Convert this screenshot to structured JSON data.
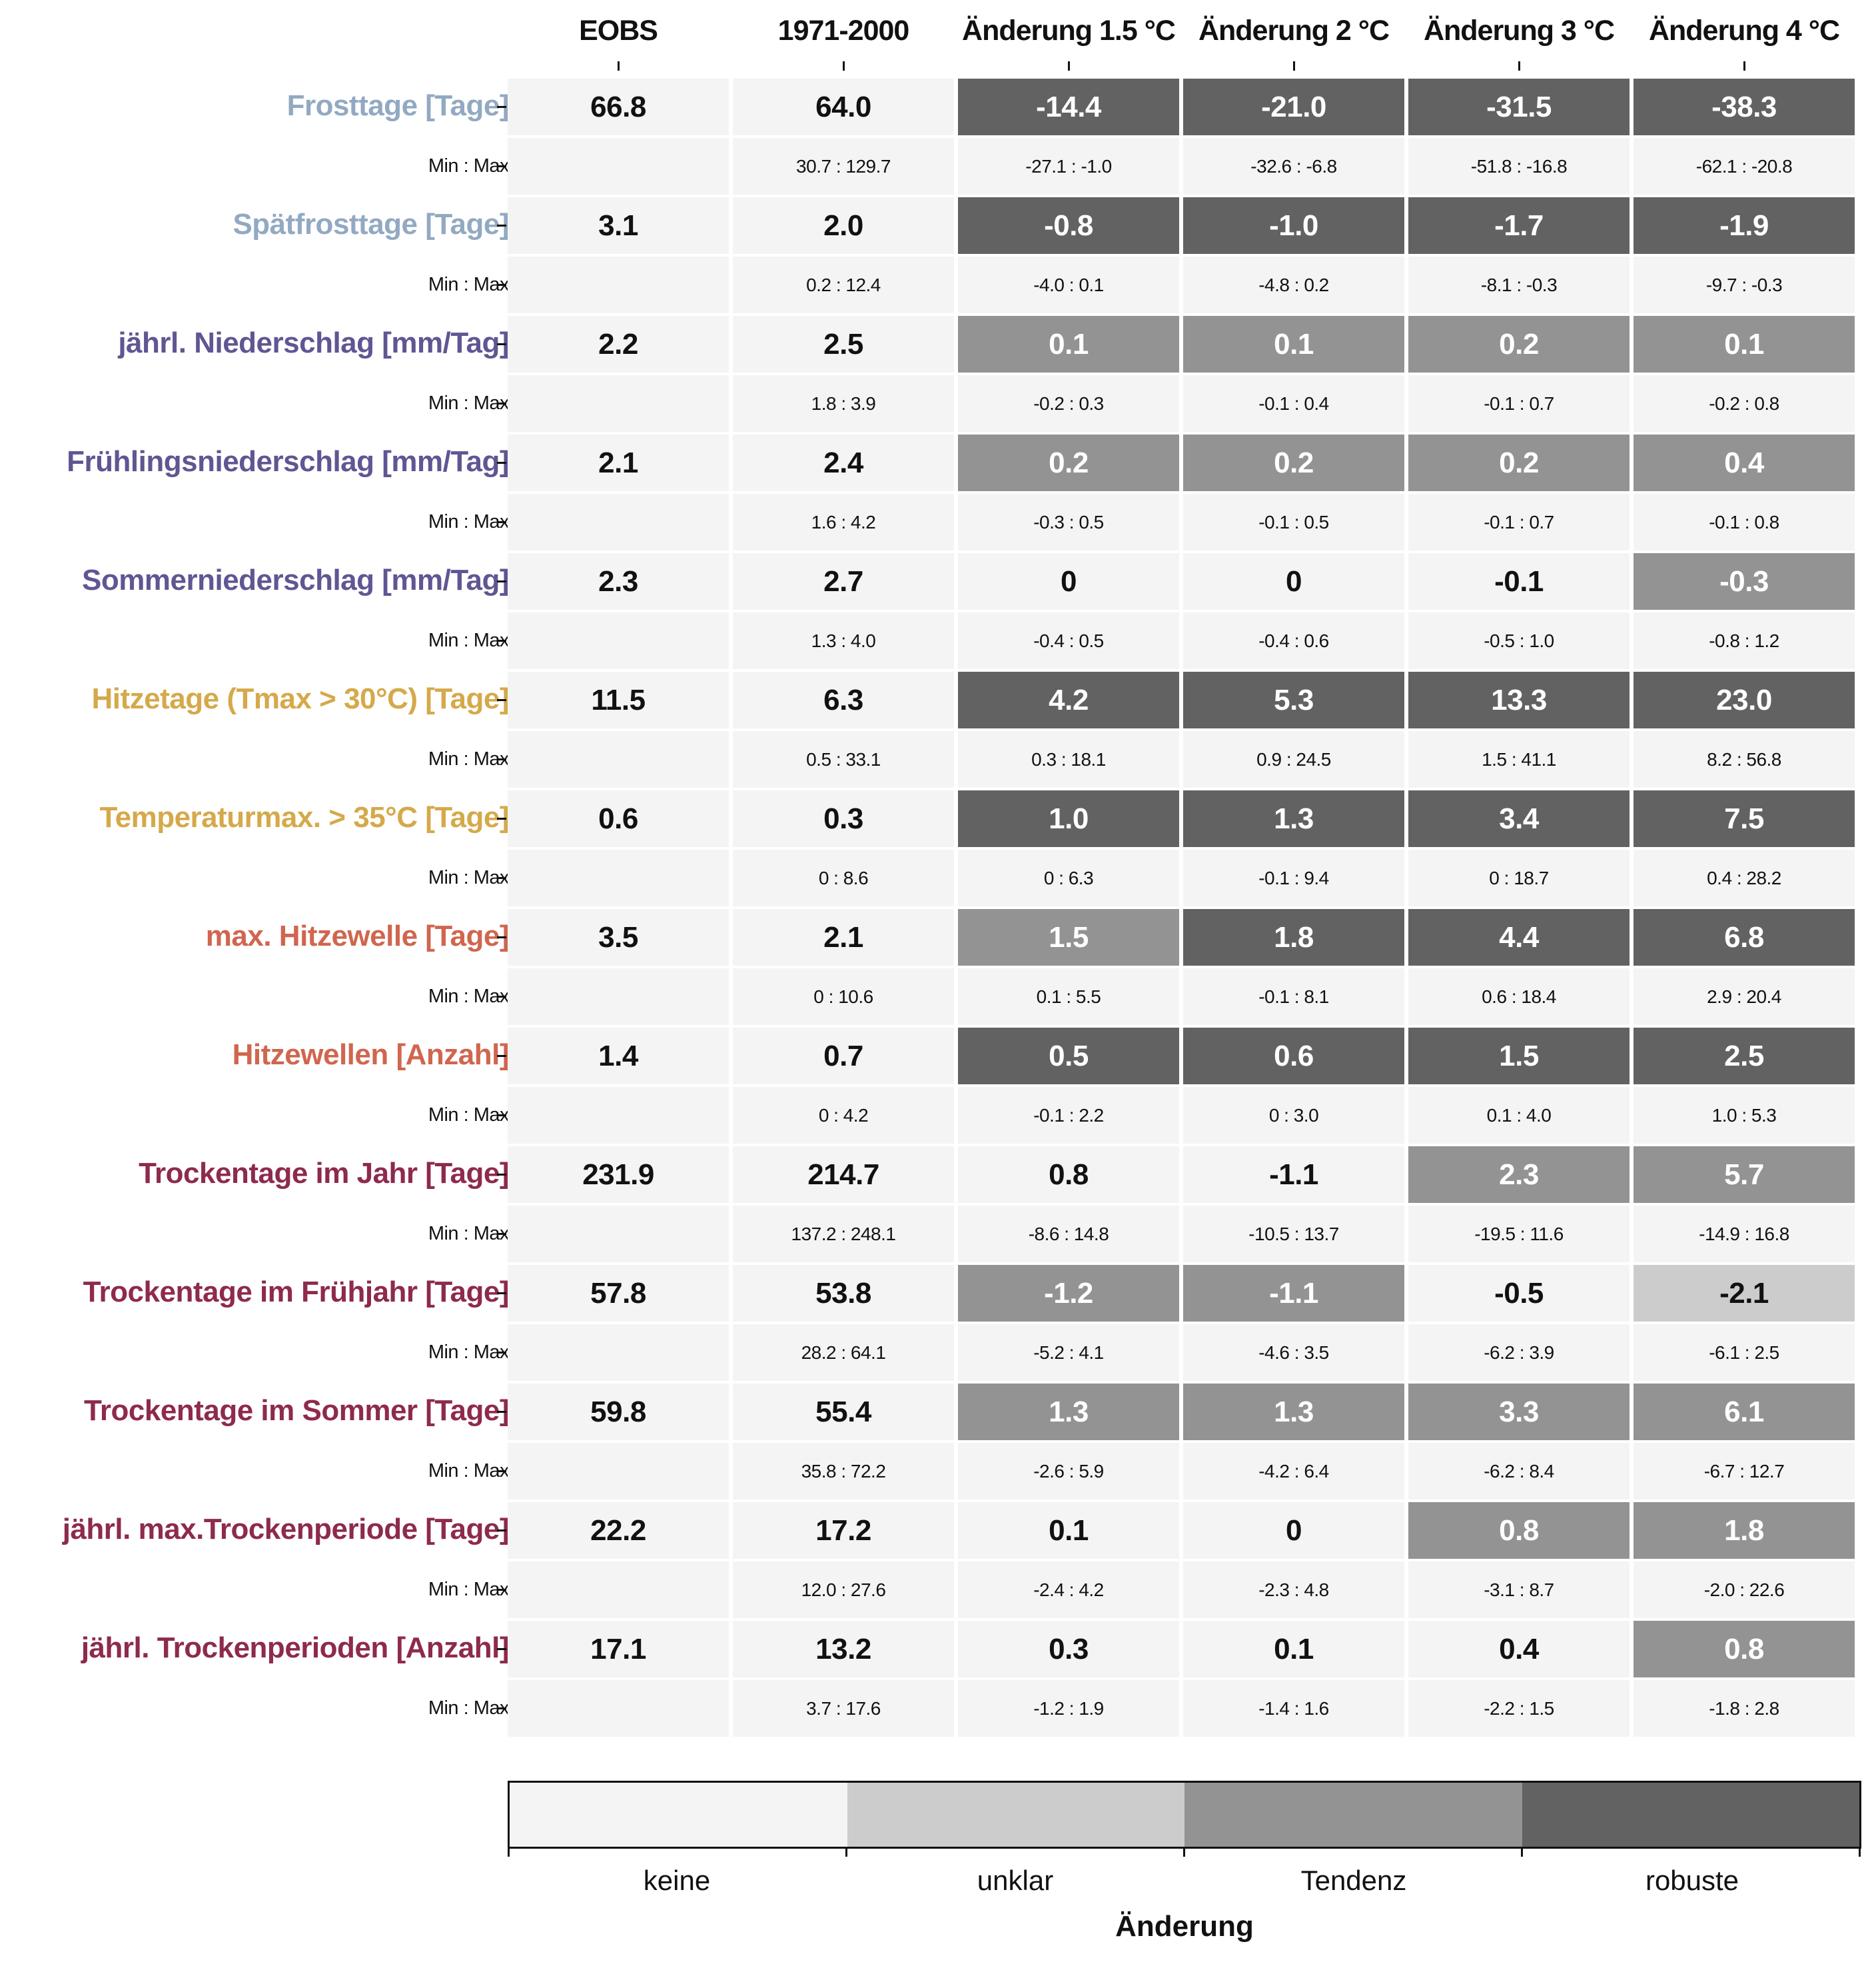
{
  "chart_data": {
    "type": "table",
    "columns": [
      "EOBS",
      "1971-2000",
      "Änderung 1.5 °C",
      "Änderung 2 °C",
      "Änderung 3 °C",
      "Änderung 4 °C"
    ],
    "sub_label": "Min : Max",
    "rows": [
      {
        "label": "Frosttage [Tage]",
        "color": "#92a9c2",
        "values": [
          "66.8",
          "64.0",
          "-14.4",
          "-21.0",
          "-31.5",
          "-38.3"
        ],
        "ranges": [
          "",
          "30.7 : 129.7",
          "-27.1 : -1.0",
          "-32.6 : -6.8",
          "-51.8 : -16.8",
          "-62.1 : -20.8"
        ],
        "change_class": [
          "robuste",
          "robuste",
          "robuste",
          "robuste"
        ]
      },
      {
        "label": "Spätfrosttage [Tage]",
        "color": "#92a9c2",
        "values": [
          "3.1",
          "2.0",
          "-0.8",
          "-1.0",
          "-1.7",
          "-1.9"
        ],
        "ranges": [
          "",
          "0.2 : 12.4",
          "-4.0 : 0.1",
          "-4.8 : 0.2",
          "-8.1 : -0.3",
          "-9.7 : -0.3"
        ],
        "change_class": [
          "robuste",
          "robuste",
          "robuste",
          "robuste"
        ]
      },
      {
        "label": "jährl. Niederschlag [mm/Tag]",
        "color": "#5f5693",
        "values": [
          "2.2",
          "2.5",
          "0.1",
          "0.1",
          "0.2",
          "0.1"
        ],
        "ranges": [
          "",
          "1.8 : 3.9",
          "-0.2 : 0.3",
          "-0.1 : 0.4",
          "-0.1 : 0.7",
          "-0.2 : 0.8"
        ],
        "change_class": [
          "Tendenz",
          "Tendenz",
          "Tendenz",
          "Tendenz"
        ]
      },
      {
        "label": "Frühlingsniederschlag [mm/Tag]",
        "color": "#5f5693",
        "values": [
          "2.1",
          "2.4",
          "0.2",
          "0.2",
          "0.2",
          "0.4"
        ],
        "ranges": [
          "",
          "1.6 : 4.2",
          "-0.3 : 0.5",
          "-0.1 : 0.5",
          "-0.1 : 0.7",
          "-0.1 : 0.8"
        ],
        "change_class": [
          "Tendenz",
          "Tendenz",
          "Tendenz",
          "Tendenz"
        ]
      },
      {
        "label": "Sommerniederschlag [mm/Tag]",
        "color": "#5f5693",
        "values": [
          "2.3",
          "2.7",
          "0",
          "0",
          "-0.1",
          "-0.3"
        ],
        "ranges": [
          "",
          "1.3 : 4.0",
          "-0.4 : 0.5",
          "-0.4 : 0.6",
          "-0.5 : 1.0",
          "-0.8 : 1.2"
        ],
        "change_class": [
          "keine",
          "keine",
          "keine",
          "Tendenz"
        ]
      },
      {
        "label": "Hitzetage (Tmax > 30°C) [Tage]",
        "color": "#d5a94a",
        "values": [
          "11.5",
          "6.3",
          "4.2",
          "5.3",
          "13.3",
          "23.0"
        ],
        "ranges": [
          "",
          "0.5 : 33.1",
          "0.3 : 18.1",
          "0.9 : 24.5",
          "1.5 : 41.1",
          "8.2 : 56.8"
        ],
        "change_class": [
          "robuste",
          "robuste",
          "robuste",
          "robuste"
        ]
      },
      {
        "label": "Temperaturmax. > 35°C [Tage]",
        "color": "#d5a94a",
        "values": [
          "0.6",
          "0.3",
          "1.0",
          "1.3",
          "3.4",
          "7.5"
        ],
        "ranges": [
          "",
          "0 : 8.6",
          "0 : 6.3",
          "-0.1 : 9.4",
          "0 : 18.7",
          "0.4 : 28.2"
        ],
        "change_class": [
          "robuste",
          "robuste",
          "robuste",
          "robuste"
        ]
      },
      {
        "label": "max. Hitzewelle [Tage]",
        "color": "#d0664f",
        "values": [
          "3.5",
          "2.1",
          "1.5",
          "1.8",
          "4.4",
          "6.8"
        ],
        "ranges": [
          "",
          "0 : 10.6",
          "0.1 : 5.5",
          "-0.1 : 8.1",
          "0.6 : 18.4",
          "2.9 : 20.4"
        ],
        "change_class": [
          "Tendenz",
          "robuste",
          "robuste",
          "robuste"
        ]
      },
      {
        "label": "Hitzewellen [Anzahl]",
        "color": "#d0664f",
        "values": [
          "1.4",
          "0.7",
          "0.5",
          "0.6",
          "1.5",
          "2.5"
        ],
        "ranges": [
          "",
          "0 : 4.2",
          "-0.1 : 2.2",
          "0 : 3.0",
          "0.1 : 4.0",
          "1.0 : 5.3"
        ],
        "change_class": [
          "robuste",
          "robuste",
          "robuste",
          "robuste"
        ]
      },
      {
        "label": "Trockentage im Jahr [Tage]",
        "color": "#8e2a4e",
        "values": [
          "231.9",
          "214.7",
          "0.8",
          "-1.1",
          "2.3",
          "5.7"
        ],
        "ranges": [
          "",
          "137.2 : 248.1",
          "-8.6 : 14.8",
          "-10.5 : 13.7",
          "-19.5 : 11.6",
          "-14.9 : 16.8"
        ],
        "change_class": [
          "keine",
          "keine",
          "Tendenz",
          "Tendenz"
        ]
      },
      {
        "label": "Trockentage im Frühjahr [Tage]",
        "color": "#8e2a4e",
        "values": [
          "57.8",
          "53.8",
          "-1.2",
          "-1.1",
          "-0.5",
          "-2.1"
        ],
        "ranges": [
          "",
          "28.2 : 64.1",
          "-5.2 : 4.1",
          "-4.6 : 3.5",
          "-6.2 : 3.9",
          "-6.1 : 2.5"
        ],
        "change_class": [
          "Tendenz",
          "Tendenz",
          "keine",
          "unklar"
        ]
      },
      {
        "label": "Trockentage im Sommer [Tage]",
        "color": "#8e2a4e",
        "values": [
          "59.8",
          "55.4",
          "1.3",
          "1.3",
          "3.3",
          "6.1"
        ],
        "ranges": [
          "",
          "35.8 : 72.2",
          "-2.6 : 5.9",
          "-4.2 : 6.4",
          "-6.2 : 8.4",
          "-6.7 : 12.7"
        ],
        "change_class": [
          "Tendenz",
          "Tendenz",
          "Tendenz",
          "Tendenz"
        ]
      },
      {
        "label": "jährl. max.Trockenperiode [Tage]",
        "color": "#8e2a4e",
        "values": [
          "22.2",
          "17.2",
          "0.1",
          "0",
          "0.8",
          "1.8"
        ],
        "ranges": [
          "",
          "12.0 : 27.6",
          "-2.4 : 4.2",
          "-2.3 : 4.8",
          "-3.1 : 8.7",
          "-2.0 : 22.6"
        ],
        "change_class": [
          "keine",
          "keine",
          "Tendenz",
          "Tendenz"
        ]
      },
      {
        "label": "jährl. Trockenperioden [Anzahl]",
        "color": "#8e2a4e",
        "values": [
          "17.1",
          "13.2",
          "0.3",
          "0.1",
          "0.4",
          "0.8"
        ],
        "ranges": [
          "",
          "3.7 : 17.6",
          "-1.2 : 1.9",
          "-1.4 : 1.6",
          "-2.2 : 1.5",
          "-1.8 : 2.8"
        ],
        "change_class": [
          "keine",
          "keine",
          "keine",
          "Tendenz"
        ]
      }
    ],
    "legend": {
      "title": "Änderung",
      "categories": [
        "keine",
        "unklar",
        "Tendenz",
        "robuste"
      ],
      "colors": [
        "#f4f4f4",
        "#cccccc",
        "#939393",
        "#626262"
      ],
      "text_colors": [
        "#111111",
        "#111111",
        "#ffffff",
        "#ffffff"
      ]
    }
  }
}
